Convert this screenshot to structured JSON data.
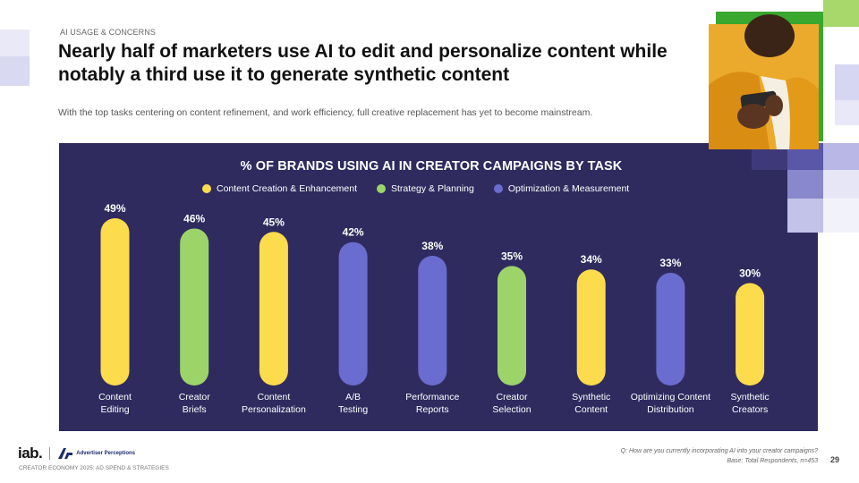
{
  "header": {
    "eyebrow": "AI USAGE & CONCERNS",
    "title": "Nearly half of marketers use AI to edit and personalize content while notably a third use it to generate synthetic content",
    "subtitle": "With the top tasks centering on content refinement, and work efficiency, full creative replacement has yet to become mainstream."
  },
  "chart_data": {
    "type": "bar",
    "title": "% OF BRANDS USING AI IN CREATOR CAMPAIGNS BY TASK",
    "categories": [
      [
        "Content",
        "Editing"
      ],
      [
        "Creator",
        "Briefs"
      ],
      [
        "Content",
        "Personalization"
      ],
      [
        "A/B",
        "Testing"
      ],
      [
        "Performance",
        "Reports"
      ],
      [
        "Creator",
        "Selection"
      ],
      [
        "Synthetic",
        "Content"
      ],
      [
        "Optimizing Content",
        "Distribution"
      ],
      [
        "Synthetic",
        "Creators"
      ]
    ],
    "values": [
      49,
      46,
      45,
      42,
      38,
      35,
      34,
      33,
      30
    ],
    "value_labels": [
      "49%",
      "46%",
      "45%",
      "42%",
      "38%",
      "35%",
      "34%",
      "33%",
      "30%"
    ],
    "groups": [
      "Content Creation & Enhancement",
      "Strategy & Planning",
      "Content Creation & Enhancement",
      "Optimization & Measurement",
      "Optimization & Measurement",
      "Strategy & Planning",
      "Content Creation & Enhancement",
      "Optimization & Measurement",
      "Content Creation & Enhancement"
    ],
    "legend": [
      {
        "name": "Content Creation & Enhancement",
        "color": "#fcdc4d"
      },
      {
        "name": "Strategy & Planning",
        "color": "#9dd46a"
      },
      {
        "name": "Optimization & Measurement",
        "color": "#6a6ccf"
      }
    ],
    "legend_position": "top",
    "grid": false,
    "ylim": [
      0,
      49
    ]
  },
  "colors": {
    "panel": "#2f2b5f",
    "yellow": "#fcdc4d",
    "green": "#9dd46a",
    "purple": "#6a6ccf"
  },
  "footer": {
    "logo_iab": "iab.",
    "logo_partner": "Advertiser Perceptions",
    "report": "CREATOR ECONOMY 2025: AD SPEND & STRATEGIES",
    "question": "Q: How are you currently incorporating AI into your creator campaigns?",
    "base": "Base: Total Respondents, n=453",
    "page": "29"
  }
}
